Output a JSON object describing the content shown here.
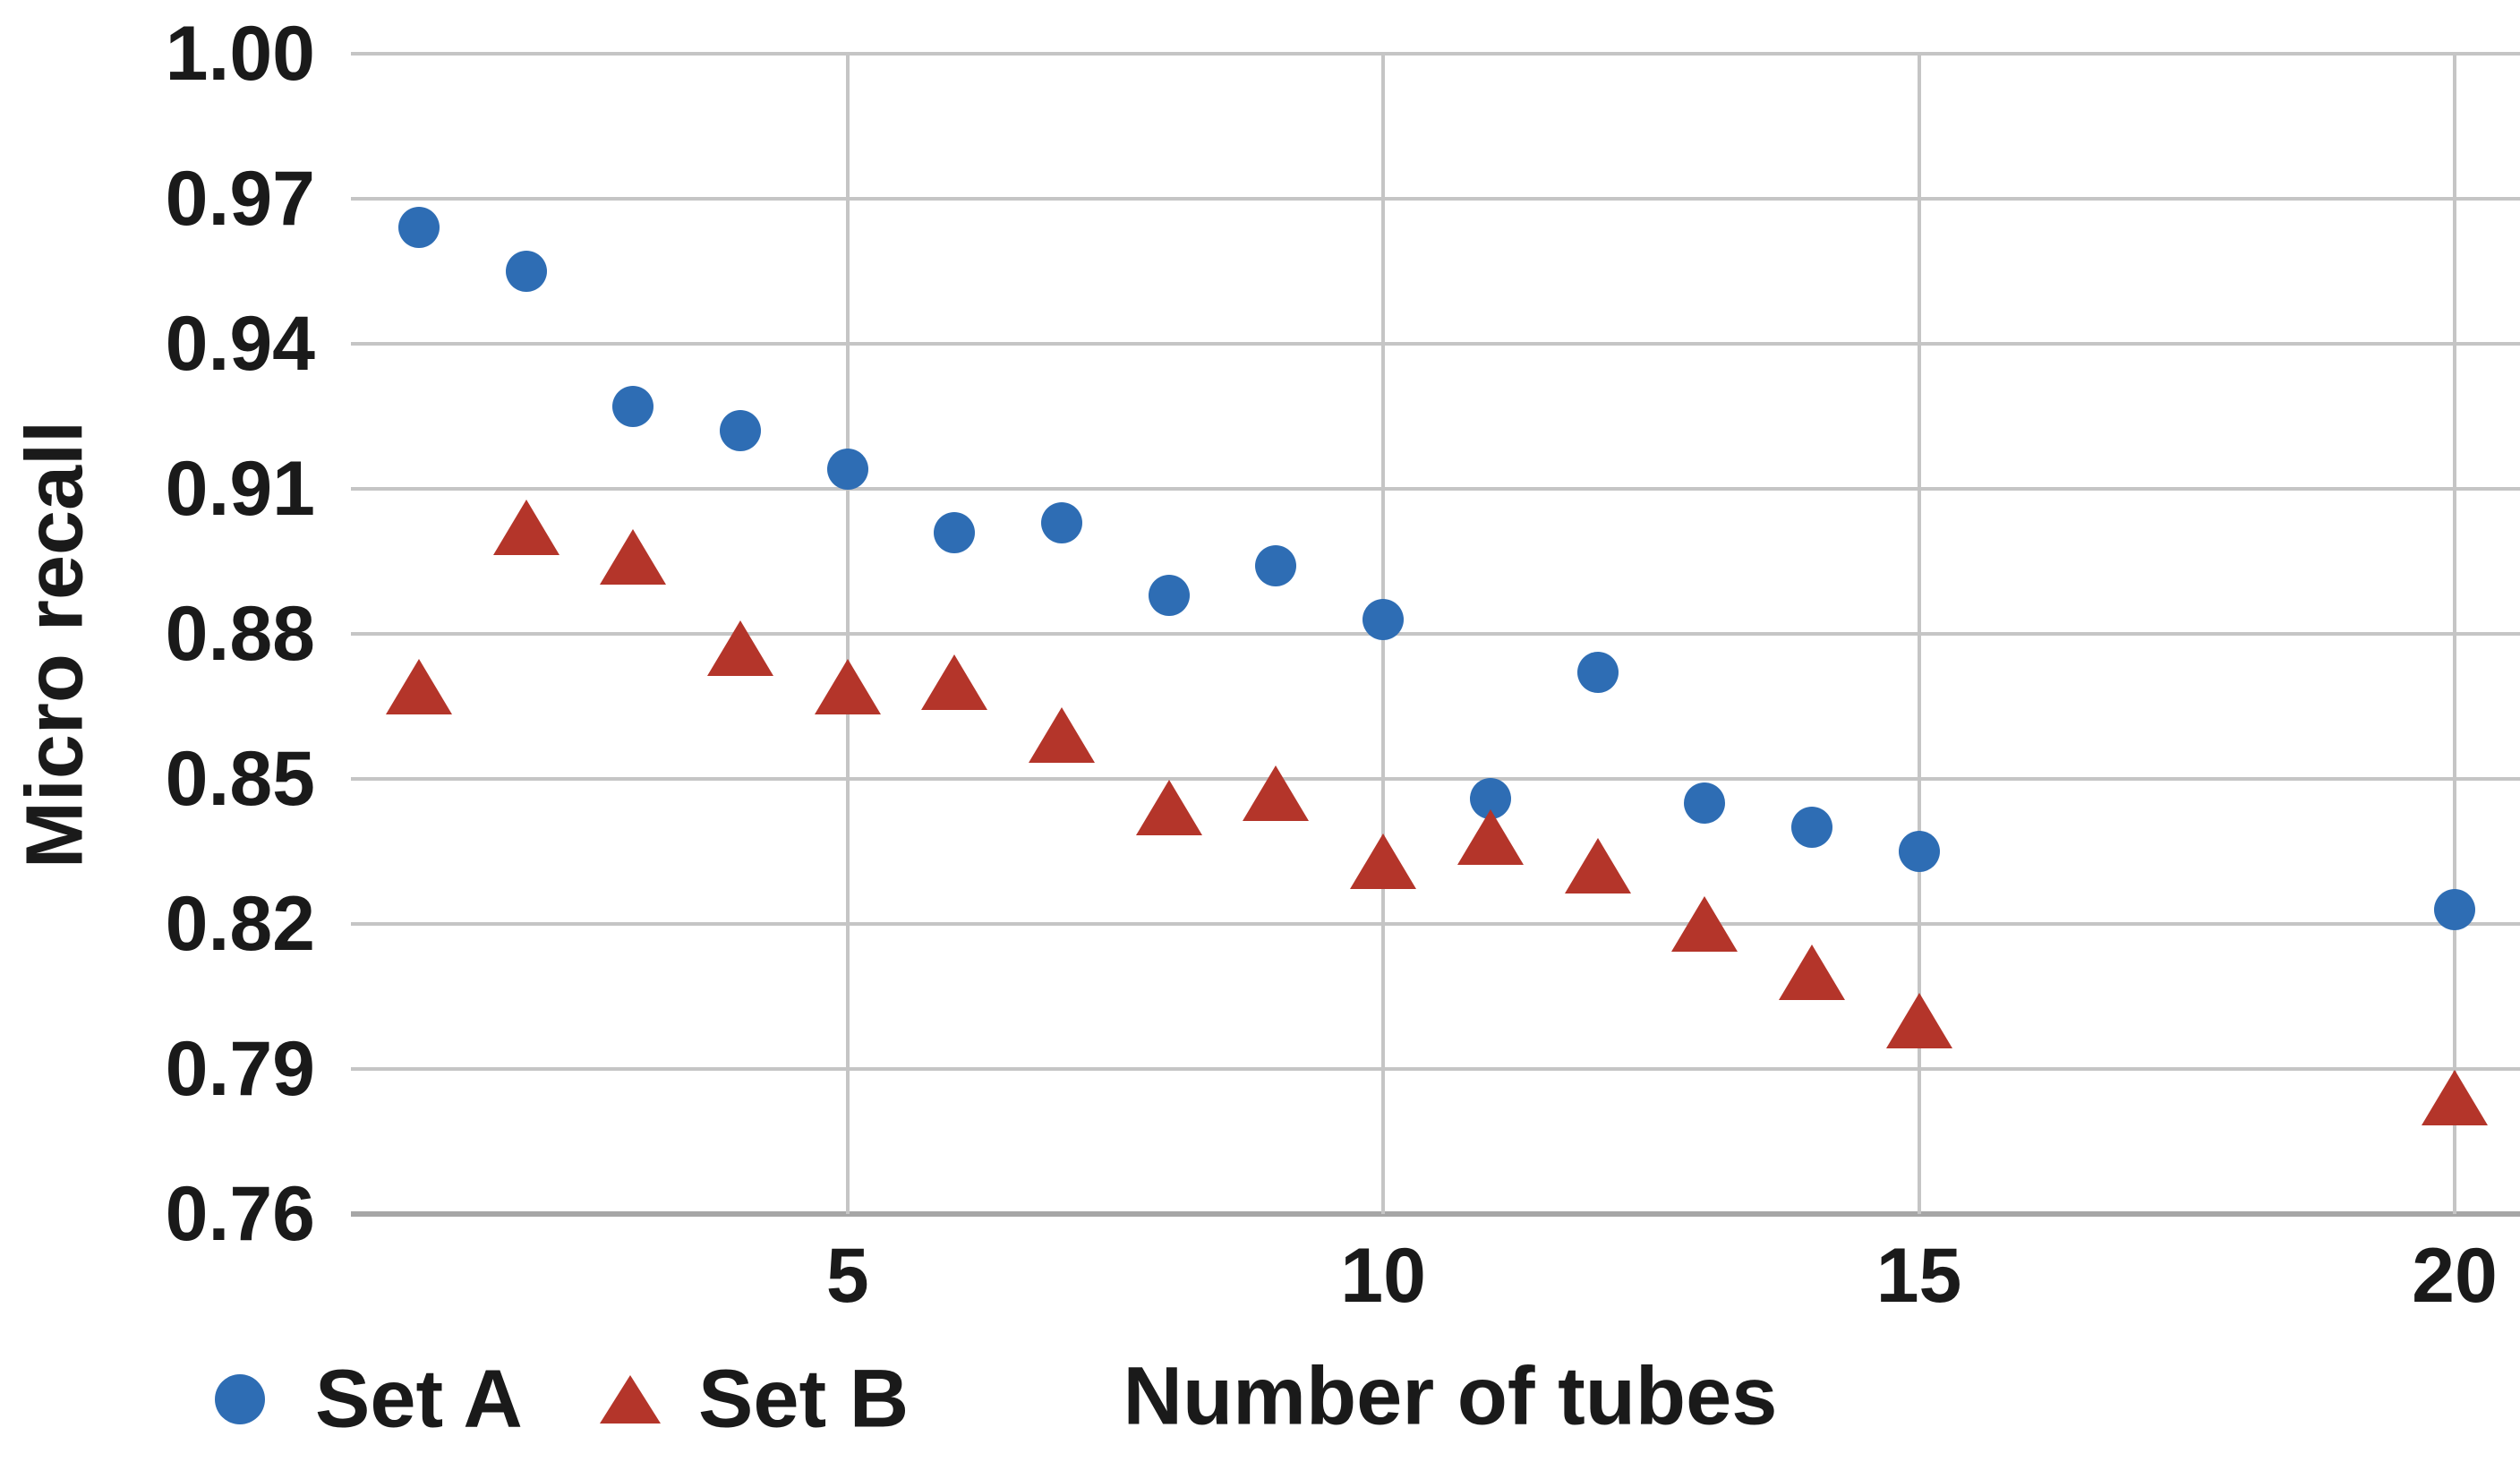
{
  "chart_data": {
    "type": "scatter",
    "title": "",
    "xlabel": "Number of tubes",
    "ylabel": "Micro recall",
    "x_ticks": [
      "5",
      "10",
      "15",
      "20"
    ],
    "x_tick_values": [
      5,
      10,
      15,
      20
    ],
    "y_ticks": [
      "1.00",
      "0.97",
      "0.94",
      "0.91",
      "0.88",
      "0.85",
      "0.82",
      "0.79",
      "0.76"
    ],
    "y_tick_values": [
      1.0,
      0.97,
      0.94,
      0.91,
      0.88,
      0.85,
      0.82,
      0.79,
      0.76
    ],
    "x_range": {
      "min": 0.365,
      "max": 20.61
    },
    "y_range": {
      "min": 0.76,
      "max": 1.0
    },
    "grid": true,
    "legend_position": "bottom-left",
    "series": [
      {
        "name": "Set A",
        "marker": "circle",
        "color": "#2E6DB4",
        "x": [
          1,
          2,
          3,
          4,
          5,
          6,
          7,
          8,
          9,
          10,
          11,
          12,
          13,
          14,
          15,
          20
        ],
        "y": [
          0.964,
          0.955,
          0.927,
          0.922,
          0.914,
          0.901,
          0.903,
          0.888,
          0.894,
          0.883,
          0.846,
          0.872,
          0.845,
          0.84,
          0.835,
          0.823
        ]
      },
      {
        "name": "Set B",
        "marker": "triangle",
        "color": "#B4352A",
        "x": [
          1,
          2,
          3,
          4,
          5,
          6,
          7,
          8,
          9,
          10,
          11,
          12,
          13,
          14,
          15,
          20
        ],
        "y": [
          0.869,
          0.902,
          0.896,
          0.877,
          0.869,
          0.87,
          0.859,
          0.844,
          0.847,
          0.833,
          0.838,
          0.832,
          0.82,
          0.81,
          0.8,
          0.784
        ]
      }
    ]
  },
  "colors": {
    "set_a": "#2E6DB4",
    "set_b": "#B4352A",
    "gridline": "#C5C5C5",
    "axis_line": "#A6A6A6",
    "text": "#1A1A1A",
    "background": "#FFFFFF"
  }
}
